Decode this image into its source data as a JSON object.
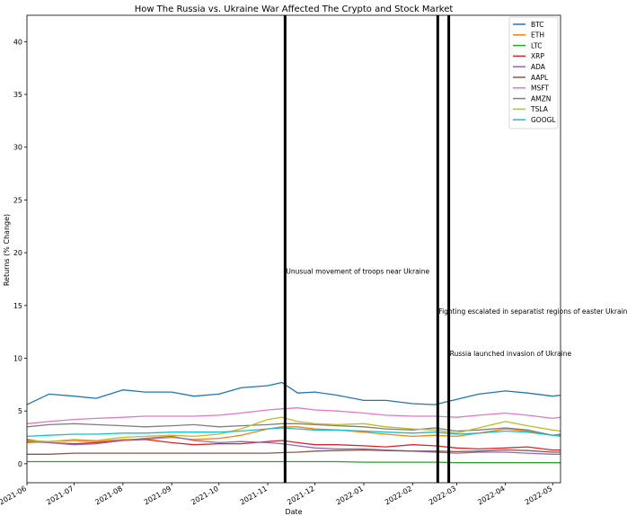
{
  "chart_data": {
    "type": "line",
    "title": "How The Russia vs. Ukraine War Affected The Crypto and Stock Market",
    "xlabel": "Date",
    "ylabel": "Returns (% Change)",
    "xlim": [
      "2021-06-01",
      "2022-05-06"
    ],
    "ylim": [
      -1.8,
      42.5
    ],
    "grid": false,
    "legend_position": "top-right",
    "x_ticks": [
      "2021-06",
      "2021-07",
      "2021-08",
      "2021-09",
      "2021-10",
      "2021-11",
      "2021-12",
      "2022-01",
      "2022-02",
      "2022-03",
      "2022-04",
      "2022-05"
    ],
    "y_ticks": [
      0,
      5,
      10,
      15,
      20,
      25,
      30,
      35,
      40
    ],
    "x": [
      "2021-06-01",
      "2021-06-15",
      "2021-07-01",
      "2021-07-15",
      "2021-08-01",
      "2021-08-15",
      "2021-09-01",
      "2021-09-15",
      "2021-10-01",
      "2021-10-15",
      "2021-11-01",
      "2021-11-10",
      "2021-11-20",
      "2021-12-01",
      "2021-12-15",
      "2022-01-01",
      "2022-01-15",
      "2022-02-01",
      "2022-02-15",
      "2022-03-01",
      "2022-03-15",
      "2022-04-01",
      "2022-04-15",
      "2022-05-01",
      "2022-05-06"
    ],
    "series": [
      {
        "name": "BTC",
        "color": "#1f77b4",
        "values": [
          5.6,
          6.6,
          6.4,
          6.2,
          7.0,
          6.8,
          6.8,
          6.4,
          6.6,
          7.2,
          7.4,
          7.7,
          6.7,
          6.8,
          6.5,
          6.0,
          6.0,
          5.7,
          5.6,
          6.1,
          6.6,
          6.9,
          6.7,
          6.4,
          6.5
        ]
      },
      {
        "name": "ETH",
        "color": "#ff7f0e",
        "values": [
          2.0,
          2.1,
          2.2,
          2.1,
          2.3,
          2.3,
          2.5,
          2.3,
          2.4,
          2.7,
          3.3,
          3.5,
          3.5,
          3.3,
          3.2,
          3.0,
          2.8,
          2.6,
          2.7,
          2.6,
          2.9,
          3.3,
          3.1,
          2.7,
          2.6
        ]
      },
      {
        "name": "LTC",
        "color": "#2ca02c",
        "values": [
          0.2,
          0.2,
          0.2,
          0.2,
          0.2,
          0.2,
          0.2,
          0.2,
          0.2,
          0.2,
          0.2,
          0.2,
          0.2,
          0.2,
          0.2,
          0.15,
          0.15,
          0.15,
          0.15,
          0.1,
          0.1,
          0.1,
          0.1,
          0.1,
          0.1
        ]
      },
      {
        "name": "XRP",
        "color": "#d62728",
        "values": [
          2.3,
          2.0,
          1.9,
          2.0,
          2.2,
          2.3,
          2.0,
          1.8,
          1.9,
          1.9,
          2.1,
          2.2,
          2.0,
          1.8,
          1.8,
          1.7,
          1.6,
          1.8,
          1.7,
          1.5,
          1.4,
          1.5,
          1.6,
          1.3,
          1.3
        ]
      },
      {
        "name": "ADA",
        "color": "#9467bd",
        "values": [
          2.1,
          2.0,
          1.8,
          1.9,
          2.2,
          2.4,
          2.6,
          2.2,
          2.0,
          2.1,
          2.0,
          1.9,
          1.7,
          1.5,
          1.4,
          1.4,
          1.3,
          1.2,
          1.1,
          1.0,
          1.1,
          1.1,
          1.0,
          0.9,
          0.9
        ]
      },
      {
        "name": "AAPL",
        "color": "#8c564b",
        "values": [
          0.9,
          0.9,
          1.0,
          1.0,
          1.0,
          1.0,
          1.0,
          1.0,
          1.0,
          1.0,
          1.0,
          1.05,
          1.1,
          1.2,
          1.25,
          1.3,
          1.25,
          1.2,
          1.2,
          1.15,
          1.2,
          1.3,
          1.25,
          1.1,
          1.1
        ]
      },
      {
        "name": "MSFT",
        "color": "#e377c2",
        "values": [
          3.8,
          4.0,
          4.2,
          4.3,
          4.4,
          4.5,
          4.5,
          4.5,
          4.6,
          4.8,
          5.1,
          5.2,
          5.3,
          5.1,
          5.0,
          4.8,
          4.6,
          4.5,
          4.5,
          4.4,
          4.6,
          4.8,
          4.6,
          4.3,
          4.4
        ]
      },
      {
        "name": "AMZN",
        "color": "#7f7f7f",
        "values": [
          3.5,
          3.7,
          3.8,
          3.7,
          3.6,
          3.5,
          3.6,
          3.7,
          3.5,
          3.6,
          3.7,
          3.8,
          3.8,
          3.7,
          3.6,
          3.5,
          3.3,
          3.2,
          3.4,
          3.1,
          3.2,
          3.4,
          3.2,
          2.7,
          2.8
        ]
      },
      {
        "name": "TSLA",
        "color": "#bcbd22",
        "values": [
          2.2,
          2.1,
          2.3,
          2.2,
          2.5,
          2.6,
          2.7,
          2.6,
          2.8,
          3.3,
          4.2,
          4.4,
          4.0,
          3.8,
          3.7,
          3.8,
          3.5,
          3.3,
          3.2,
          2.9,
          3.4,
          4.0,
          3.6,
          3.2,
          3.1
        ]
      },
      {
        "name": "GOOGL",
        "color": "#17becf",
        "values": [
          2.6,
          2.7,
          2.8,
          2.8,
          2.9,
          2.9,
          3.0,
          3.0,
          3.0,
          3.1,
          3.3,
          3.4,
          3.3,
          3.2,
          3.2,
          3.1,
          3.0,
          2.9,
          3.0,
          2.8,
          2.9,
          3.1,
          3.0,
          2.7,
          2.7
        ]
      }
    ],
    "vlines": [
      {
        "x": "2021-11-12",
        "color": "#000000",
        "label": "Unusual movement of troops near Ukraine",
        "label_y": 18
      },
      {
        "x": "2022-02-17",
        "color": "#000000",
        "label": "Fighting escalated in separatist regions of easter Ukraine",
        "label_y": 14.2
      },
      {
        "x": "2022-02-24",
        "color": "#000000",
        "label": "Russia launched invasion of Ukraine",
        "label_y": 10.2
      }
    ]
  }
}
